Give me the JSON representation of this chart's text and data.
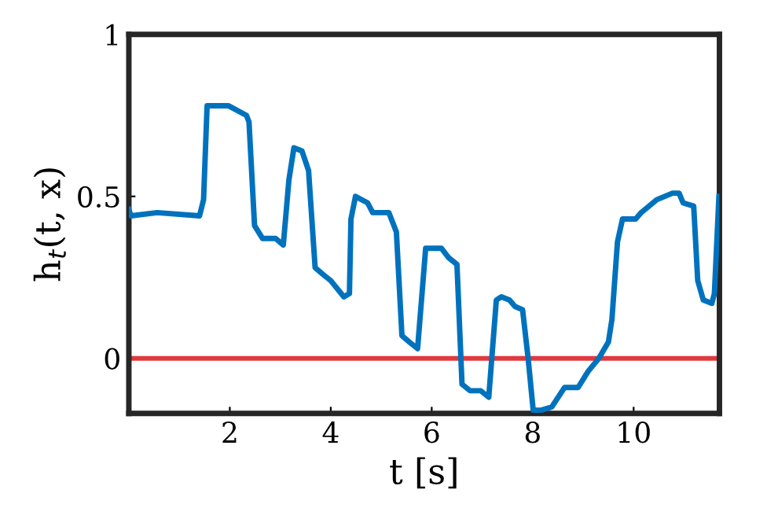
{
  "chart_data": {
    "type": "line",
    "xlabel": "t [s]",
    "ylabel": "h$_{t}$(t, x)",
    "xlim": [
      0,
      11.7
    ],
    "ylim": [
      -0.17,
      1
    ],
    "xticks": [
      2,
      4,
      6,
      8,
      10
    ],
    "yticks": [
      0,
      0.5,
      1
    ],
    "grid": false,
    "legend": false,
    "line_style": "solid",
    "marker": "none",
    "ref_lines": [
      {
        "axis": "y",
        "value": 0,
        "color": "#e0393e"
      }
    ],
    "series": [
      {
        "color": "#0072bd",
        "x": [
          0,
          0.04,
          0.56,
          1.4,
          1.48,
          1.55,
          1.66,
          1.97,
          2.33,
          2.38,
          2.49,
          2.65,
          2.91,
          3.06,
          3.17,
          3.27,
          3.43,
          3.56,
          3.69,
          3.84,
          4.0,
          4.26,
          4.37,
          4.4,
          4.49,
          4.73,
          4.83,
          5.15,
          5.3,
          5.41,
          5.56,
          5.72,
          5.88,
          6.19,
          6.34,
          6.5,
          6.6,
          6.76,
          6.97,
          7.13,
          7.28,
          7.38,
          7.54,
          7.65,
          7.8,
          7.91,
          8.01,
          8.17,
          8.38,
          8.63,
          8.9,
          9.1,
          9.31,
          9.5,
          9.57,
          9.68,
          9.78,
          10.04,
          10.15,
          10.46,
          10.77,
          10.9,
          10.98,
          11.19,
          11.27,
          11.38,
          11.55,
          11.6,
          11.69
        ],
        "values": [
          0.46,
          0.44,
          0.45,
          0.44,
          0.49,
          0.78,
          0.78,
          0.78,
          0.75,
          0.73,
          0.41,
          0.37,
          0.37,
          0.35,
          0.55,
          0.65,
          0.64,
          0.58,
          0.28,
          0.26,
          0.24,
          0.19,
          0.2,
          0.43,
          0.5,
          0.48,
          0.45,
          0.45,
          0.39,
          0.07,
          0.05,
          0.03,
          0.34,
          0.34,
          0.31,
          0.29,
          -0.08,
          -0.1,
          -0.1,
          -0.12,
          0.18,
          0.19,
          0.18,
          0.16,
          0.15,
          0.0,
          -0.16,
          -0.16,
          -0.15,
          -0.09,
          -0.09,
          -0.04,
          0.0,
          0.05,
          0.12,
          0.36,
          0.43,
          0.43,
          0.45,
          0.49,
          0.51,
          0.51,
          0.48,
          0.47,
          0.24,
          0.18,
          0.17,
          0.2,
          0.5
        ]
      }
    ]
  }
}
